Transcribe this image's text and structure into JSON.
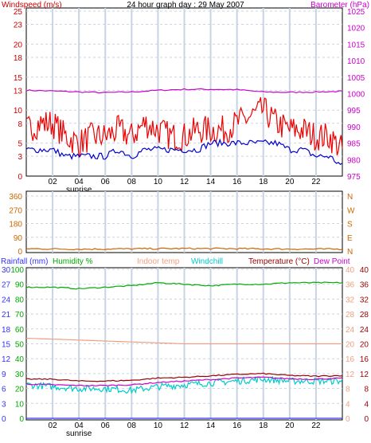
{
  "title": "24 hour graph day : 29 May 2007",
  "colors": {
    "windspeed": "#ee0000",
    "windavg": "#0000cc",
    "barometer": "#cc00cc",
    "direction": "#cc6600",
    "rainfall": "#3333ff",
    "humidity": "#00aa00",
    "indoor": "#f0a080",
    "windchill": "#00cccc",
    "temperature": "#990000",
    "dewpoint": "#cc00cc",
    "grid": "#c8d4e4",
    "axisleft": "#cc0000",
    "axisright": "#cc00cc",
    "axistemp": "#cc0000"
  },
  "chart_data": [
    {
      "type": "line",
      "title": "24 hour graph day : 29 May 2007",
      "xlabel": "",
      "x_ticks": [
        "02",
        "04",
        "06",
        "08",
        "10",
        "12",
        "14",
        "16",
        "18",
        "20",
        "22"
      ],
      "x_annotation": "sunrise",
      "left_axis": {
        "label": "Windspeed (m/s)",
        "ticks": [
          0,
          3,
          5,
          8,
          10,
          13,
          15,
          18,
          20,
          23,
          25
        ],
        "range": [
          0,
          25
        ]
      },
      "right_axis": {
        "label": "Barometer (hPa)",
        "ticks": [
          975,
          980,
          985,
          990,
          995,
          1000,
          1005,
          1010,
          1015,
          1020,
          1025
        ],
        "range": [
          975,
          1025
        ]
      },
      "series": [
        {
          "name": "Windspeed (m/s)",
          "axis": "left",
          "x_hours": [
            0,
            1,
            2,
            3,
            4,
            5,
            6,
            7,
            8,
            9,
            10,
            11,
            12,
            13,
            14,
            15,
            16,
            17,
            18,
            19,
            20,
            21,
            22,
            23,
            24
          ],
          "values": [
            7,
            8,
            8,
            6,
            5,
            6,
            6,
            7,
            6,
            8,
            7,
            6,
            6,
            7,
            7,
            7,
            8,
            9,
            10,
            8,
            7,
            7,
            6,
            6,
            4
          ]
        },
        {
          "name": "Wind average",
          "axis": "left",
          "x_hours": [
            0,
            1,
            2,
            3,
            4,
            5,
            6,
            7,
            8,
            9,
            10,
            11,
            12,
            13,
            14,
            15,
            16,
            17,
            18,
            19,
            20,
            21,
            22,
            23,
            24
          ],
          "values": [
            4,
            4,
            4,
            3,
            3,
            3,
            3,
            4,
            3,
            4,
            4,
            4,
            4,
            4,
            5,
            5,
            5,
            5,
            5,
            5,
            4,
            4,
            3,
            3,
            1.5
          ]
        },
        {
          "name": "Barometer (hPa)",
          "axis": "right",
          "x_hours": [
            0,
            2,
            4,
            6,
            8,
            10,
            12,
            14,
            16,
            18,
            20,
            22,
            24
          ],
          "values": [
            1001,
            1000.8,
            1000.5,
            1000.3,
            1000.5,
            1001,
            1001.3,
            1001.3,
            1001.2,
            1000.5,
            1000.4,
            1000.5,
            1000.7
          ]
        }
      ]
    },
    {
      "type": "line",
      "left_axis": {
        "label": "",
        "ticks": [
          0,
          90,
          180,
          270,
          360
        ],
        "range": [
          0,
          360
        ]
      },
      "right_axis": {
        "label": "",
        "ticks": [
          "N",
          "E",
          "S",
          "W",
          "N"
        ]
      },
      "series": [
        {
          "name": "Wind direction",
          "axis": "left",
          "x_hours": [
            0,
            4,
            8,
            12,
            16,
            20,
            24
          ],
          "values": [
            15,
            12,
            14,
            16,
            15,
            13,
            12
          ]
        }
      ]
    },
    {
      "type": "line",
      "legend": [
        "Rainfall (mm)",
        "Humidity %",
        "Indoor temp",
        "Windchill",
        "Temperature (°C)",
        "Dew Point"
      ],
      "x_ticks": [
        "02",
        "04",
        "06",
        "08",
        "10",
        "12",
        "14",
        "16",
        "18",
        "20",
        "22"
      ],
      "x_annotation": "sunrise",
      "left_axis_rain": {
        "label": "Rainfall (mm)",
        "ticks": [
          0,
          3,
          6,
          9,
          12,
          15,
          18,
          21,
          24,
          27,
          30
        ]
      },
      "left_axis_humidity": {
        "label": "Humidity %",
        "ticks": [
          0,
          10,
          20,
          30,
          40,
          50,
          60,
          70,
          80,
          90,
          100
        ],
        "range": [
          0,
          100
        ]
      },
      "right_axis_indoor": {
        "ticks": [
          0,
          4,
          8,
          12,
          16,
          20,
          24,
          28,
          32,
          36,
          40
        ]
      },
      "right_axis_temp": {
        "label": "Temperature (°C)",
        "ticks": [
          0,
          4,
          8,
          12,
          16,
          20,
          24,
          28,
          32,
          36,
          40
        ],
        "range": [
          0,
          40
        ]
      },
      "series": [
        {
          "name": "Rainfall (mm)",
          "axis": "rain",
          "x_hours": [
            0,
            24
          ],
          "values": [
            0,
            0
          ]
        },
        {
          "name": "Humidity %",
          "axis": "humidity",
          "x_hours": [
            0,
            2,
            4,
            6,
            8,
            10,
            12,
            14,
            16,
            18,
            20,
            22,
            24
          ],
          "values": [
            88,
            88,
            87,
            88,
            89,
            91,
            90,
            89,
            90,
            90,
            91,
            91,
            91
          ]
        },
        {
          "name": "Indoor temp",
          "axis": "temp",
          "x_hours": [
            0,
            4,
            8,
            12,
            16,
            20,
            24
          ],
          "values": [
            21.5,
            21,
            20.5,
            20,
            20,
            20,
            20
          ]
        },
        {
          "name": "Windchill",
          "axis": "temp",
          "x_hours": [
            0,
            2,
            4,
            6,
            8,
            10,
            12,
            14,
            16,
            18,
            20,
            22,
            24
          ],
          "values": [
            9,
            8.5,
            8,
            8,
            7.5,
            8.5,
            9,
            9.5,
            10,
            10.5,
            10,
            10,
            10
          ]
        },
        {
          "name": "Temperature (°C)",
          "axis": "temp",
          "x_hours": [
            0,
            2,
            4,
            6,
            8,
            10,
            12,
            14,
            16,
            18,
            20,
            22,
            24
          ],
          "values": [
            10.5,
            10.5,
            10,
            10,
            10.2,
            10.8,
            11,
            11.4,
            11.8,
            12,
            11.5,
            11.3,
            11.5
          ]
        },
        {
          "name": "Dew Point",
          "axis": "temp",
          "x_hours": [
            0,
            2,
            4,
            6,
            8,
            10,
            12,
            14,
            16,
            18,
            20,
            22,
            24
          ],
          "values": [
            9.2,
            9,
            8.8,
            8.8,
            9,
            9.6,
            10,
            10.4,
            10.8,
            11,
            10.6,
            10.5,
            10.8
          ]
        }
      ]
    }
  ]
}
